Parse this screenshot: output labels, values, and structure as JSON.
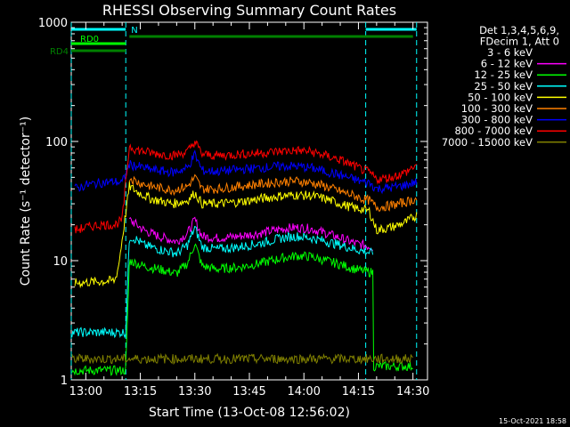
{
  "chart_data": {
    "type": "line",
    "title": "RHESSI Observing Summary Count Rates",
    "xlabel": "Start Time (13-Oct-08 12:56:02)",
    "ylabel": "Count Rate (s⁻¹ detector⁻¹)",
    "y_scale": "log",
    "ylim": [
      1,
      1000
    ],
    "xlim_minutes_after_1300": [
      -4,
      94
    ],
    "x_ticks": [
      {
        "label": "13:00",
        "value": 0
      },
      {
        "label": "13:15",
        "value": 15
      },
      {
        "label": "13:30",
        "value": 30
      },
      {
        "label": "13:45",
        "value": 45
      },
      {
        "label": "14:00",
        "value": 60
      },
      {
        "label": "14:15",
        "value": 75
      },
      {
        "label": "14:30",
        "value": 90
      }
    ],
    "y_ticks": [
      {
        "label": "1",
        "value": 1
      },
      {
        "label": "10",
        "value": 10
      },
      {
        "label": "100",
        "value": 100
      },
      {
        "label": "1000",
        "value": 1000
      }
    ],
    "legend": {
      "header": [
        "Det 1,3,4,5,6,9,",
        "FDecim 1, Att 0"
      ],
      "placement": "right"
    },
    "series": [
      {
        "name": "3 - 6 keV",
        "color": "#000000",
        "x": [
          -4,
          11,
          12,
          14,
          16,
          22,
          25,
          29,
          30,
          31,
          34,
          40,
          45,
          50,
          56,
          60,
          64,
          68,
          71,
          74,
          76,
          79
        ],
        "y": [
          null,
          null,
          11,
          10,
          8.5,
          6.8,
          5.8,
          9,
          15,
          9,
          5.5,
          5.5,
          5.8,
          6.5,
          7.5,
          8,
          7.5,
          6.5,
          5.2,
          4.6,
          4.5,
          4.4
        ]
      },
      {
        "name": "6 - 12 keV",
        "color": "#ff00ff",
        "x": [
          -4,
          11,
          12,
          14,
          16,
          20,
          25,
          28,
          30,
          32,
          36,
          42,
          48,
          54,
          58,
          62,
          66,
          70,
          74,
          79
        ],
        "y": [
          null,
          null,
          22,
          20,
          18,
          16,
          14.5,
          17,
          22,
          16,
          15.5,
          16,
          17,
          18.5,
          19,
          18.5,
          17,
          15.5,
          14,
          13
        ]
      },
      {
        "name": "12 - 25 keV",
        "color": "#00ff00",
        "x": [
          -4,
          -3.8,
          11,
          12,
          14,
          16,
          20,
          25,
          28,
          30,
          32,
          36,
          42,
          48,
          54,
          58,
          62,
          66,
          70,
          74,
          78,
          79,
          79.2,
          90,
          91
        ],
        "y": [
          null,
          1.2,
          1.2,
          10,
          9.5,
          9,
          8.5,
          7.8,
          9.5,
          14,
          9,
          8.5,
          8.8,
          9.5,
          10.5,
          11,
          10.8,
          10,
          9.3,
          8.5,
          8,
          8,
          1.3,
          1.3,
          null
        ]
      },
      {
        "name": "25 - 50 keV",
        "color": "#00ffff",
        "x": [
          -4,
          -3.8,
          11,
          12,
          14,
          16,
          20,
          25,
          28,
          30,
          32,
          36,
          42,
          48,
          54,
          58,
          62,
          66,
          70,
          74,
          79
        ],
        "y": [
          null,
          2.5,
          2.5,
          16,
          15,
          13.5,
          12.5,
          11.5,
          13.5,
          19,
          13,
          12.5,
          13,
          14,
          15.5,
          16,
          15.5,
          14.5,
          13.5,
          12.5,
          11.5
        ]
      },
      {
        "name": "50 - 100 keV",
        "color": "#ffff00",
        "x": [
          -3,
          8,
          9,
          12,
          14,
          18,
          24,
          28,
          30,
          32,
          36,
          42,
          48,
          54,
          58,
          62,
          66,
          70,
          74,
          76,
          78,
          80,
          84,
          88,
          91
        ],
        "y": [
          6.5,
          6.8,
          9,
          42,
          38,
          33,
          30,
          32,
          37,
          30,
          30,
          31,
          33,
          35,
          35.5,
          35,
          33,
          30,
          27.5,
          27,
          26,
          18,
          19,
          21,
          24
        ]
      },
      {
        "name": "100 - 300 keV",
        "color": "#ff8000",
        "x": [
          -4,
          12,
          14,
          18,
          24,
          28,
          30,
          32,
          36,
          42,
          48,
          54,
          58,
          62,
          66,
          70,
          74,
          76,
          78,
          80,
          84,
          88,
          91
        ],
        "y": [
          null,
          50,
          46,
          42,
          39,
          42,
          50,
          40,
          40,
          42,
          44,
          46,
          46.5,
          45,
          42,
          38,
          35,
          33,
          32,
          28,
          29,
          31,
          33
        ]
      },
      {
        "name": "300 - 800 keV",
        "color": "#0000ff",
        "x": [
          -3,
          0,
          4,
          8,
          10,
          12,
          14,
          18,
          24,
          28,
          30,
          32,
          36,
          42,
          48,
          54,
          58,
          62,
          66,
          70,
          74,
          76,
          78,
          80,
          84,
          88,
          91
        ],
        "y": [
          40,
          43,
          45,
          46,
          45,
          64,
          62,
          58,
          55,
          60,
          78,
          57,
          56,
          58,
          60,
          62,
          62,
          60,
          56,
          52,
          48,
          46,
          45,
          40,
          41,
          43,
          46
        ]
      },
      {
        "name": "800 - 7000 keV",
        "color": "#ff0000",
        "x": [
          -3,
          0,
          4,
          8,
          10,
          12,
          14,
          18,
          24,
          28,
          30,
          32,
          36,
          42,
          48,
          54,
          58,
          62,
          66,
          70,
          74,
          76,
          78,
          80,
          84,
          88,
          91
        ],
        "y": [
          18,
          19,
          20,
          20,
          22,
          92,
          85,
          80,
          76,
          82,
          100,
          78,
          76,
          78,
          80,
          83,
          84,
          82,
          76,
          70,
          62,
          58,
          55,
          48,
          50,
          55,
          64
        ]
      },
      {
        "name": "7000 - 15000 keV",
        "color": "#808000",
        "x": [
          -4,
          -3.8,
          90,
          91
        ],
        "y": [
          null,
          1.5,
          1.5,
          null
        ]
      }
    ],
    "attenuator_bars": [
      {
        "label": "RD0",
        "color": "#00ff00",
        "x": [
          -4,
          11
        ],
        "row": 1
      },
      {
        "label": "RD4",
        "color": "#008000",
        "x": [
          -4,
          11
        ],
        "row": 2
      },
      {
        "label": "",
        "color": "#008000",
        "x": [
          12,
          90
        ],
        "row": 0
      }
    ],
    "interval_bars": [
      {
        "label": "N",
        "color": "#00ffff",
        "x": [
          -4,
          11
        ],
        "row": 0
      },
      {
        "label": "",
        "color": "#00ffff",
        "x": [
          77,
          91
        ],
        "row": 0
      }
    ],
    "grid": false
  },
  "timestamp": "15-Oct-2021 18:58"
}
